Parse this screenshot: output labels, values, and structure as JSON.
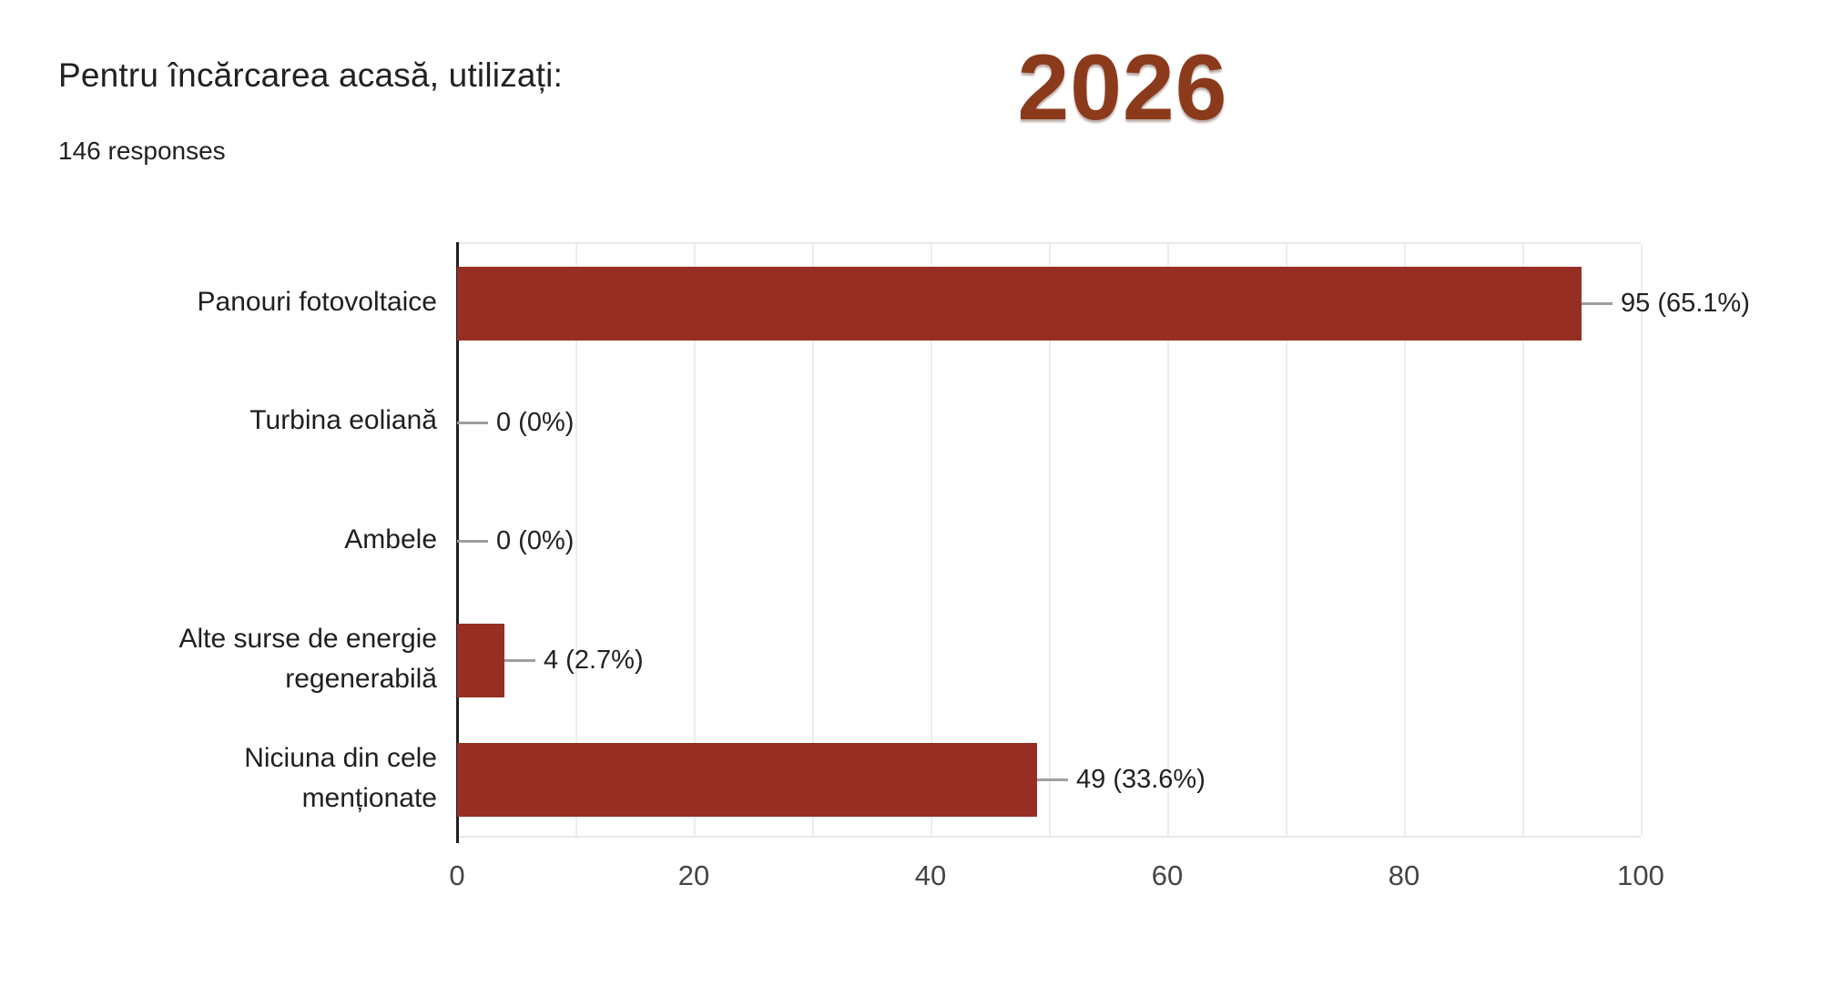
{
  "header": {
    "title": "Pentru încărcarea acasă, utilizați:",
    "responses": "146 responses",
    "year_badge": "2026"
  },
  "colors": {
    "bar": "#962e24",
    "year_text": "#8b3a1b",
    "axis_line": "#1f1f1f",
    "gridline": "#ededed",
    "connector": "#9e9e9e",
    "title_text": "#202124",
    "value_text": "#212121",
    "tick_text": "#454545"
  },
  "chart_data": {
    "type": "bar",
    "orientation": "horizontal",
    "title": "Pentru încărcarea acasă, utilizați:",
    "subtitle": "146 responses",
    "total_responses": 146,
    "categories": [
      "Panouri fotovoltaice",
      "Turbina eoliană",
      "Ambele",
      "Alte surse de energie regenerabilă",
      "Niciuna din cele menționate"
    ],
    "values": [
      95,
      0,
      0,
      4,
      49
    ],
    "percentages": [
      65.1,
      0,
      0,
      2.7,
      33.6
    ],
    "value_labels": [
      "95 (65.1%)",
      "0 (0%)",
      "0 (0%)",
      "4 (2.7%)",
      "49 (33.6%)"
    ],
    "xlabel": "",
    "ylabel": "",
    "xlim": [
      0,
      100
    ],
    "xticks": [
      0,
      20,
      40,
      60,
      80,
      100
    ],
    "gridline_step": 10,
    "grid": true,
    "legend": false
  }
}
